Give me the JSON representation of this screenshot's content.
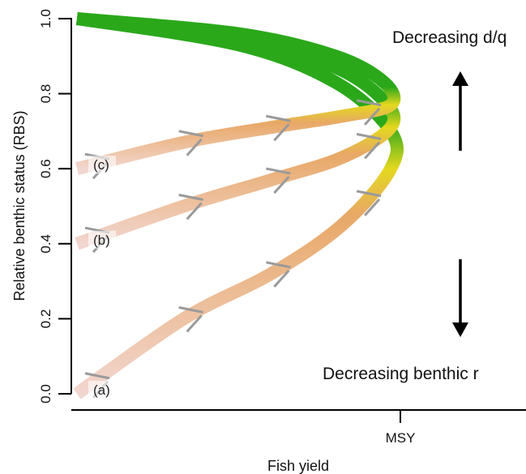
{
  "chart_data": {
    "type": "line",
    "xlabel": "Fish yield",
    "ylabel": "Relative benthic status (RBS)",
    "ylim": [
      0,
      1
    ],
    "yticks": [
      "0.0",
      "0.2",
      "0.4",
      "0.6",
      "0.8",
      "1.0"
    ],
    "xtick_labels": [
      "MSY"
    ],
    "annotations": {
      "top": "Decreasing d/q",
      "bottom": "Decreasing benthic r"
    },
    "colors": {
      "green": "#2aa81a",
      "yellow": "#e4d81e",
      "orange": "#e8a866",
      "pink": "#f2d6d0",
      "whisker": "#9a9a9a",
      "axis": "#000000"
    },
    "series": [
      {
        "label": "(a)",
        "points": [
          [
            0.0,
            0.0
          ],
          [
            0.33,
            0.2
          ],
          [
            0.6,
            0.32
          ],
          [
            0.82,
            0.45
          ],
          [
            0.97,
            0.6
          ],
          [
            0.97,
            0.7
          ],
          [
            0.8,
            0.83
          ],
          [
            0.5,
            0.93
          ],
          [
            0.0,
            1.0
          ]
        ]
      },
      {
        "label": "(b)",
        "points": [
          [
            0.0,
            0.4
          ],
          [
            0.33,
            0.5
          ],
          [
            0.6,
            0.57
          ],
          [
            0.82,
            0.63
          ],
          [
            0.97,
            0.71
          ],
          [
            0.95,
            0.78
          ],
          [
            0.8,
            0.87
          ],
          [
            0.5,
            0.95
          ],
          [
            0.0,
            1.0
          ]
        ]
      },
      {
        "label": "(c)",
        "points": [
          [
            0.0,
            0.6
          ],
          [
            0.33,
            0.67
          ],
          [
            0.6,
            0.71
          ],
          [
            0.82,
            0.74
          ],
          [
            0.97,
            0.77
          ],
          [
            0.95,
            0.83
          ],
          [
            0.8,
            0.9
          ],
          [
            0.5,
            0.96
          ],
          [
            0.0,
            1.0
          ]
        ]
      }
    ]
  }
}
